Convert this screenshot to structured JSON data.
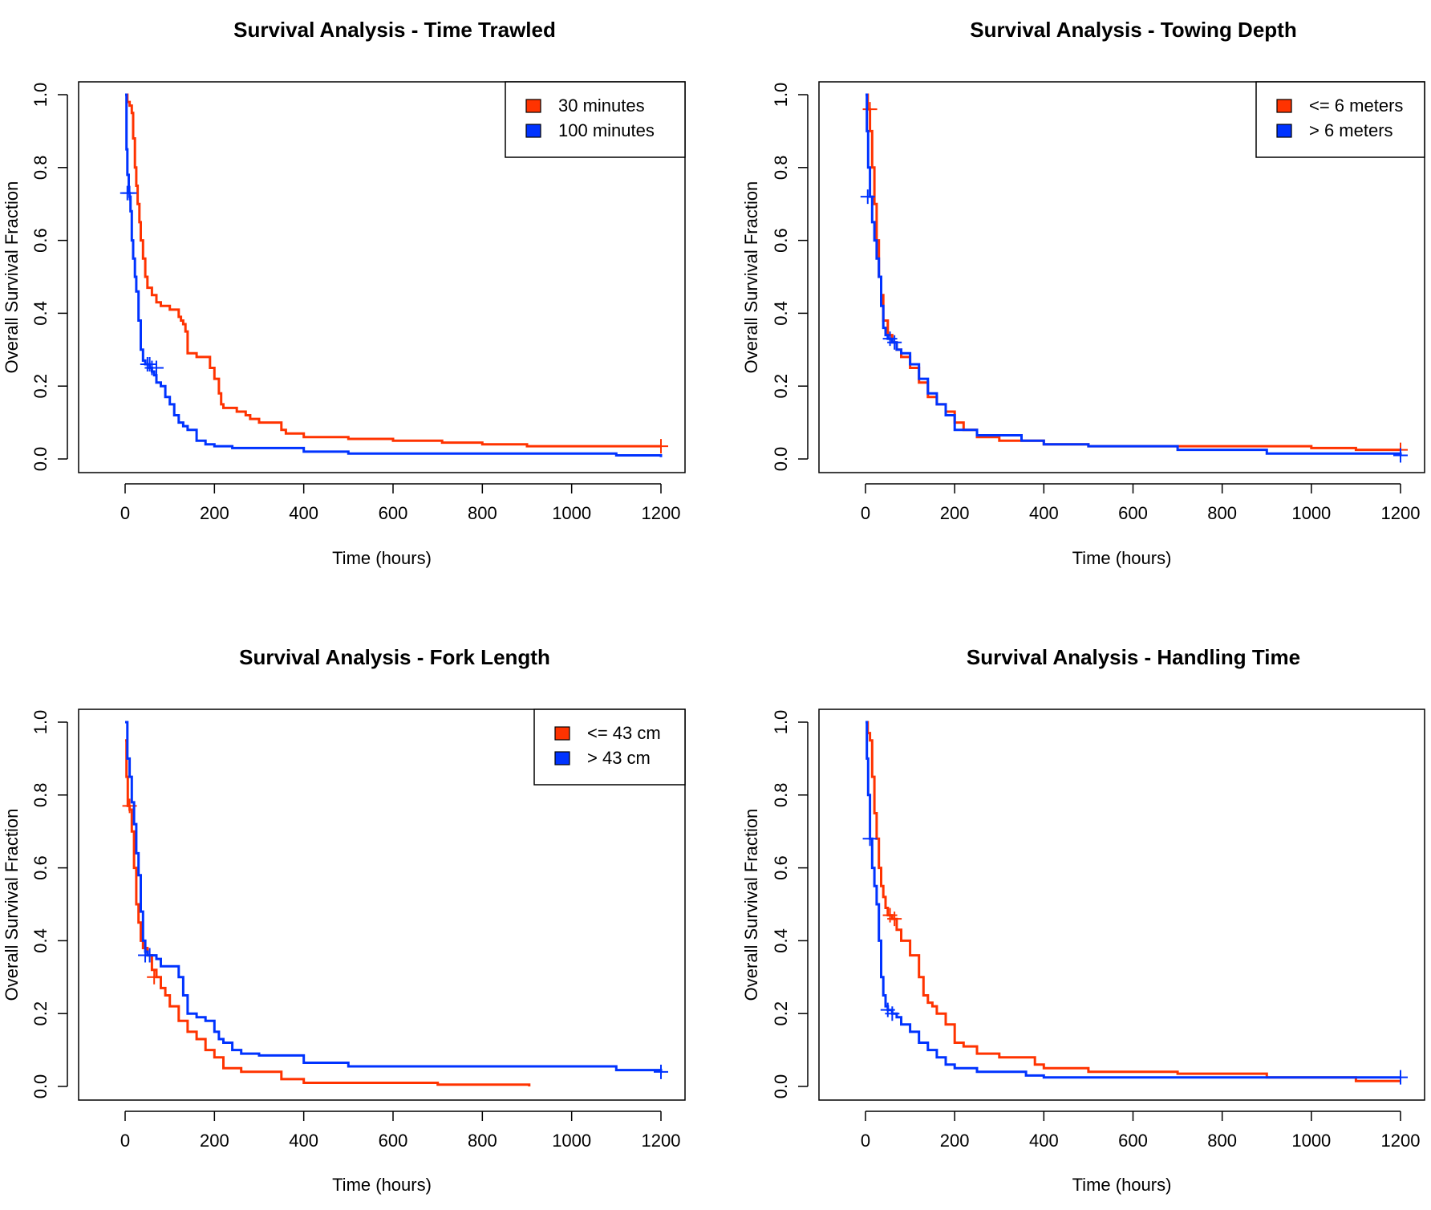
{
  "chart_data": [
    {
      "type": "line",
      "title": "Survival Analysis - Time Trawled",
      "xlabel": "Time (hours)",
      "ylabel": "Overall Survival Fraction",
      "xlim": [
        0,
        1200
      ],
      "ylim": [
        0,
        1
      ],
      "xticks": [
        0,
        200,
        400,
        600,
        800,
        1000,
        1200
      ],
      "yticks": [
        0.0,
        0.2,
        0.4,
        0.6,
        0.8,
        1.0
      ],
      "xtick_labels": [
        "0",
        "200",
        "400",
        "600",
        "800",
        "1000",
        "1200"
      ],
      "ytick_labels": [
        "0.0",
        "0.2",
        "0.4",
        "0.6",
        "0.8",
        "1.0"
      ],
      "grid": false,
      "legend_position": "top-right",
      "series": [
        {
          "name": "30 minutes",
          "color": "#ff3300",
          "x": [
            0,
            5,
            10,
            15,
            18,
            22,
            25,
            28,
            32,
            35,
            40,
            45,
            50,
            60,
            70,
            80,
            100,
            120,
            125,
            130,
            135,
            140,
            160,
            180,
            190,
            200,
            210,
            215,
            220,
            250,
            270,
            280,
            300,
            330,
            350,
            360,
            400,
            500,
            600,
            710,
            800,
            900,
            1000,
            1200
          ],
          "y": [
            1.0,
            0.98,
            0.97,
            0.95,
            0.88,
            0.8,
            0.75,
            0.7,
            0.65,
            0.6,
            0.55,
            0.5,
            0.47,
            0.45,
            0.43,
            0.42,
            0.41,
            0.39,
            0.38,
            0.37,
            0.35,
            0.29,
            0.28,
            0.28,
            0.25,
            0.22,
            0.18,
            0.15,
            0.14,
            0.13,
            0.12,
            0.11,
            0.1,
            0.1,
            0.08,
            0.07,
            0.06,
            0.055,
            0.05,
            0.045,
            0.04,
            0.035,
            0.035,
            0.035
          ],
          "censored": [
            [
              1200,
              0.035
            ]
          ]
        },
        {
          "name": "100 minutes",
          "color": "#0033ff",
          "x": [
            0,
            3,
            5,
            8,
            10,
            12,
            15,
            18,
            22,
            25,
            30,
            35,
            40,
            45,
            50,
            55,
            60,
            65,
            70,
            80,
            90,
            100,
            110,
            120,
            130,
            140,
            160,
            180,
            200,
            240,
            300,
            400,
            500,
            700,
            1000,
            1100,
            1200
          ],
          "y": [
            1.0,
            0.85,
            0.78,
            0.73,
            0.72,
            0.68,
            0.6,
            0.55,
            0.5,
            0.46,
            0.38,
            0.3,
            0.27,
            0.26,
            0.26,
            0.25,
            0.24,
            0.23,
            0.21,
            0.2,
            0.17,
            0.15,
            0.12,
            0.1,
            0.09,
            0.08,
            0.05,
            0.04,
            0.035,
            0.03,
            0.03,
            0.02,
            0.015,
            0.015,
            0.015,
            0.01,
            0.005
          ],
          "censored": [
            [
              5,
              0.73
            ],
            [
              10,
              0.73
            ],
            [
              50,
              0.26
            ],
            [
              55,
              0.26
            ],
            [
              60,
              0.25
            ],
            [
              70,
              0.25
            ]
          ]
        }
      ]
    },
    {
      "type": "line",
      "title": "Survival Analysis - Towing Depth",
      "xlabel": "Time (hours)",
      "ylabel": "Overall Survival Fraction",
      "xlim": [
        0,
        1200
      ],
      "ylim": [
        0,
        1
      ],
      "xticks": [
        0,
        200,
        400,
        600,
        800,
        1000,
        1200
      ],
      "yticks": [
        0.0,
        0.2,
        0.4,
        0.6,
        0.8,
        1.0
      ],
      "xtick_labels": [
        "0",
        "200",
        "400",
        "600",
        "800",
        "1000",
        "1200"
      ],
      "ytick_labels": [
        "0.0",
        "0.2",
        "0.4",
        "0.6",
        "0.8",
        "1.0"
      ],
      "grid": false,
      "legend_position": "top-right",
      "series": [
        {
          "name": "<= 6 meters",
          "color": "#ff3300",
          "x": [
            0,
            5,
            10,
            15,
            20,
            25,
            30,
            35,
            40,
            50,
            60,
            70,
            80,
            100,
            120,
            140,
            160,
            180,
            200,
            220,
            250,
            300,
            400,
            500,
            600,
            800,
            1000,
            1100,
            1200
          ],
          "y": [
            1.0,
            0.96,
            0.9,
            0.8,
            0.7,
            0.6,
            0.5,
            0.45,
            0.38,
            0.34,
            0.32,
            0.3,
            0.28,
            0.25,
            0.21,
            0.17,
            0.15,
            0.13,
            0.1,
            0.08,
            0.06,
            0.05,
            0.04,
            0.035,
            0.035,
            0.035,
            0.03,
            0.025,
            0.025
          ],
          "censored": [
            [
              10,
              0.96
            ],
            [
              1200,
              0.025
            ]
          ]
        },
        {
          "name": "> 6 meters",
          "color": "#0033ff",
          "x": [
            0,
            3,
            6,
            10,
            15,
            20,
            25,
            30,
            35,
            40,
            45,
            50,
            60,
            70,
            80,
            100,
            120,
            140,
            160,
            180,
            200,
            250,
            300,
            350,
            400,
            500,
            700,
            900,
            1200
          ],
          "y": [
            1.0,
            0.9,
            0.8,
            0.72,
            0.65,
            0.6,
            0.55,
            0.5,
            0.42,
            0.36,
            0.34,
            0.33,
            0.32,
            0.3,
            0.29,
            0.26,
            0.22,
            0.18,
            0.15,
            0.12,
            0.08,
            0.065,
            0.065,
            0.05,
            0.04,
            0.035,
            0.025,
            0.015,
            0.01
          ],
          "censored": [
            [
              5,
              0.72
            ],
            [
              55,
              0.33
            ],
            [
              65,
              0.32
            ],
            [
              1200,
              0.01
            ]
          ]
        }
      ]
    },
    {
      "type": "line",
      "title": "Survival Analysis - Fork Length",
      "xlabel": "Time (hours)",
      "ylabel": "Overall Survival Fraction",
      "xlim": [
        0,
        1200
      ],
      "ylim": [
        0,
        1
      ],
      "xticks": [
        0,
        200,
        400,
        600,
        800,
        1000,
        1200
      ],
      "yticks": [
        0.0,
        0.2,
        0.4,
        0.6,
        0.8,
        1.0
      ],
      "xtick_labels": [
        "0",
        "200",
        "400",
        "600",
        "800",
        "1000",
        "1200"
      ],
      "ytick_labels": [
        "0.0",
        "0.2",
        "0.4",
        "0.6",
        "0.8",
        "1.0"
      ],
      "grid": false,
      "legend_position": "top-right",
      "series": [
        {
          "name": "<= 43 cm",
          "color": "#ff3300",
          "x": [
            0,
            3,
            6,
            10,
            15,
            20,
            25,
            30,
            35,
            40,
            50,
            60,
            70,
            80,
            90,
            100,
            120,
            140,
            160,
            180,
            200,
            210,
            220,
            260,
            300,
            350,
            400,
            500,
            700,
            800,
            900,
            905
          ],
          "y": [
            0.95,
            0.85,
            0.77,
            0.76,
            0.7,
            0.6,
            0.5,
            0.45,
            0.4,
            0.38,
            0.36,
            0.32,
            0.3,
            0.27,
            0.25,
            0.22,
            0.18,
            0.15,
            0.13,
            0.1,
            0.08,
            0.08,
            0.05,
            0.04,
            0.04,
            0.02,
            0.01,
            0.01,
            0.005,
            0.005,
            0.005,
            0.0
          ],
          "censored": [
            [
              10,
              0.77
            ],
            [
              65,
              0.3
            ]
          ]
        },
        {
          "name": "> 43 cm",
          "color": "#0033ff",
          "x": [
            0,
            5,
            10,
            15,
            20,
            25,
            30,
            35,
            40,
            45,
            50,
            60,
            70,
            80,
            100,
            120,
            130,
            140,
            160,
            180,
            200,
            210,
            220,
            240,
            260,
            300,
            400,
            500,
            700,
            1000,
            1100,
            1200
          ],
          "y": [
            1.0,
            0.9,
            0.85,
            0.78,
            0.72,
            0.64,
            0.58,
            0.48,
            0.4,
            0.37,
            0.36,
            0.36,
            0.35,
            0.33,
            0.33,
            0.3,
            0.25,
            0.2,
            0.19,
            0.18,
            0.15,
            0.13,
            0.12,
            0.1,
            0.09,
            0.085,
            0.065,
            0.055,
            0.055,
            0.055,
            0.045,
            0.04
          ],
          "censored": [
            [
              45,
              0.36
            ],
            [
              55,
              0.36
            ],
            [
              1200,
              0.04
            ]
          ]
        }
      ]
    },
    {
      "type": "line",
      "title": "Survival Analysis - Handling Time",
      "xlabel": "Time (hours)",
      "ylabel": "Overall Survival Fraction",
      "xlim": [
        0,
        1200
      ],
      "ylim": [
        0,
        1
      ],
      "xticks": [
        0,
        200,
        400,
        600,
        800,
        1000,
        1200
      ],
      "yticks": [
        0.0,
        0.2,
        0.4,
        0.6,
        0.8,
        1.0
      ],
      "xtick_labels": [
        "0",
        "200",
        "400",
        "600",
        "800",
        "1000",
        "1200"
      ],
      "ytick_labels": [
        "0.0",
        "0.2",
        "0.4",
        "0.6",
        "0.8",
        "1.0"
      ],
      "grid": false,
      "legend_position": "none",
      "series": [
        {
          "color": "#ff3300",
          "x": [
            0,
            5,
            10,
            15,
            20,
            25,
            30,
            35,
            40,
            45,
            50,
            60,
            70,
            80,
            100,
            120,
            130,
            140,
            150,
            160,
            180,
            200,
            220,
            250,
            300,
            380,
            400,
            500,
            700,
            900,
            1100,
            1200
          ],
          "y": [
            1.0,
            0.97,
            0.95,
            0.85,
            0.75,
            0.68,
            0.6,
            0.55,
            0.52,
            0.49,
            0.47,
            0.46,
            0.43,
            0.4,
            0.36,
            0.3,
            0.25,
            0.23,
            0.22,
            0.2,
            0.17,
            0.12,
            0.11,
            0.09,
            0.08,
            0.06,
            0.05,
            0.04,
            0.035,
            0.025,
            0.015,
            0.015
          ],
          "censored": [
            [
              55,
              0.47
            ],
            [
              65,
              0.46
            ]
          ]
        },
        {
          "color": "#0033ff",
          "x": [
            0,
            3,
            6,
            10,
            15,
            20,
            25,
            30,
            35,
            40,
            45,
            50,
            60,
            70,
            80,
            100,
            120,
            140,
            160,
            180,
            200,
            250,
            360,
            400,
            600,
            900,
            1200
          ],
          "y": [
            1.0,
            0.9,
            0.8,
            0.68,
            0.6,
            0.55,
            0.5,
            0.4,
            0.3,
            0.25,
            0.22,
            0.21,
            0.2,
            0.19,
            0.17,
            0.15,
            0.12,
            0.1,
            0.08,
            0.06,
            0.05,
            0.04,
            0.03,
            0.025,
            0.025,
            0.025,
            0.025
          ],
          "censored": [
            [
              10,
              0.68
            ],
            [
              50,
              0.21
            ],
            [
              60,
              0.2
            ],
            [
              1200,
              0.025
            ]
          ]
        }
      ]
    }
  ]
}
